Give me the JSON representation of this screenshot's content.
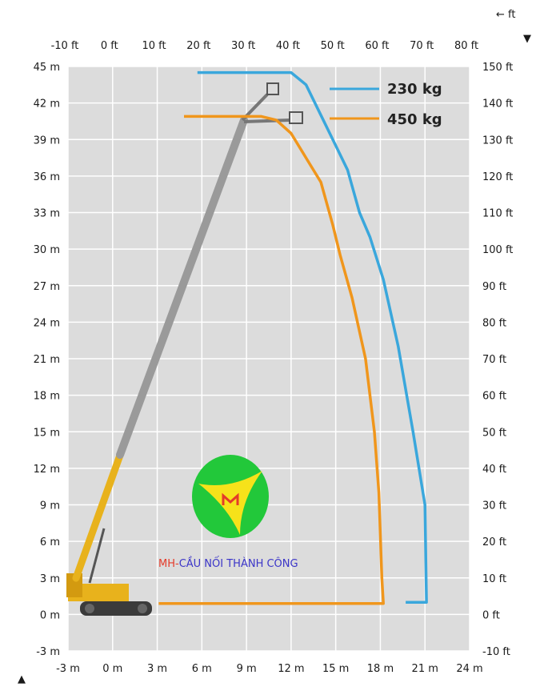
{
  "chart_data": {
    "type": "line",
    "title": "",
    "x_axis_bottom": {
      "unit": "m",
      "ticks": [
        -3,
        0,
        3,
        6,
        9,
        12,
        15,
        18,
        21,
        24
      ],
      "range": [
        -3,
        24
      ]
    },
    "x_axis_top": {
      "unit": "ft",
      "ticks": [
        -10,
        0,
        10,
        20,
        30,
        40,
        50,
        60,
        70,
        80
      ]
    },
    "y_axis_left": {
      "unit": "m",
      "ticks": [
        -3,
        0,
        3,
        6,
        9,
        12,
        15,
        18,
        21,
        24,
        27,
        30,
        33,
        36,
        39,
        42,
        45
      ],
      "range": [
        -3,
        45
      ]
    },
    "y_axis_right": {
      "unit": "ft",
      "ticks": [
        -10,
        0,
        10,
        20,
        30,
        40,
        50,
        60,
        70,
        80,
        90,
        100,
        110,
        120,
        130,
        140,
        150
      ]
    },
    "corner_labels": {
      "ft_arrow": "← ft",
      "top_right_marker": "▼",
      "bottom_left_marker": "▲"
    },
    "grid": true,
    "legend_position": "top-right",
    "series": [
      {
        "name": "230 kg",
        "color": "#3aa7dc",
        "points": [
          [
            5.7,
            44.5
          ],
          [
            12,
            44.5
          ],
          [
            13,
            43.5
          ],
          [
            14,
            41
          ],
          [
            15,
            38.5
          ],
          [
            15.8,
            36.5
          ],
          [
            16.6,
            33
          ],
          [
            17.3,
            31
          ],
          [
            18.2,
            27.5
          ],
          [
            19.2,
            22
          ],
          [
            20.2,
            15
          ],
          [
            21,
            9
          ],
          [
            21.1,
            1
          ],
          [
            19.7,
            1
          ]
        ]
      },
      {
        "name": "450 kg",
        "color": "#f0961c",
        "points": [
          [
            4.8,
            40.9
          ],
          [
            10,
            40.9
          ],
          [
            11,
            40.6
          ],
          [
            12,
            39.5
          ],
          [
            13,
            37.5
          ],
          [
            14,
            35.5
          ],
          [
            14.8,
            32
          ],
          [
            15.3,
            29.5
          ],
          [
            16.1,
            26
          ],
          [
            17,
            21
          ],
          [
            17.6,
            15
          ],
          [
            17.9,
            10
          ],
          [
            18.1,
            3
          ],
          [
            18.2,
            0.9
          ],
          [
            3.1,
            0.9
          ]
        ]
      }
    ],
    "colors": {
      "grid_bg": "#dcdcdc",
      "grid_line": "#ffffff",
      "boom_gray": "#9a9a9a",
      "boom_yellow": "#e8b21c"
    },
    "watermark": {
      "text_prefix": "MH-",
      "text_main": "CẦU NỐI THÀNH CÔNG",
      "logo_color": "#22c83a"
    }
  }
}
